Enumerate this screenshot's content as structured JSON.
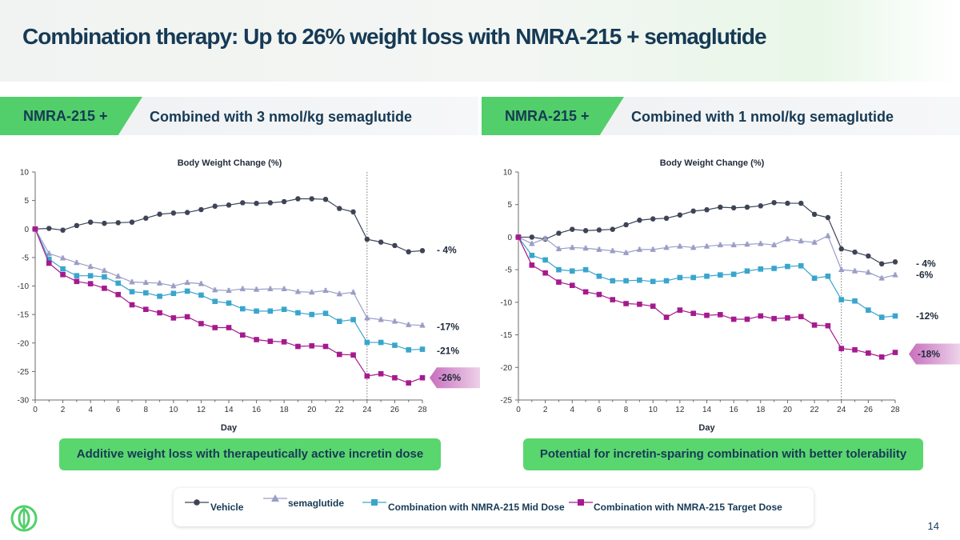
{
  "title": "Combination therapy: Up to 26% weight loss with NMRA-215 + semaglutide",
  "page_number": "14",
  "logo": {
    "icon": "leaf-logo-icon"
  },
  "colors": {
    "accent_green": "#52cf6a",
    "vehicle": "#3d4456",
    "semaglutide": "#9a9dc6",
    "mid_dose": "#3aa5cc",
    "target_dose": "#a51a8e"
  },
  "panels": [
    {
      "tag": "NMRA-215 +",
      "heading": "Combined with 3 nmol/kg semaglutide",
      "callout": "Additive weight loss with therapeutically active incretin dose"
    },
    {
      "tag": "NMRA-215 +",
      "heading": "Combined with 1 nmol/kg semaglutide",
      "callout": "Potential for incretin-sparing combination with better tolerability"
    }
  ],
  "legend": [
    {
      "label": "Vehicle",
      "marker": "circle",
      "color": "#3d4456"
    },
    {
      "label": "semaglutide",
      "marker": "triangle",
      "color": "#9a9dc6"
    },
    {
      "label": "Combination with NMRA-215 Mid Dose",
      "marker": "square",
      "color": "#3aa5cc"
    },
    {
      "label": "Combination with NMRA-215 Target Dose",
      "marker": "square",
      "color": "#a51a8e"
    }
  ],
  "chart_data": [
    {
      "type": "line",
      "title": "Body Weight Change (%)",
      "xlabel": "Day",
      "ylabel": "",
      "xlim": [
        0,
        28
      ],
      "ylim": [
        -30,
        10
      ],
      "xticks": [
        "0",
        "2",
        "4",
        "6",
        "8",
        "10",
        "12",
        "14",
        "16",
        "18",
        "20",
        "22",
        "24",
        "26",
        "28"
      ],
      "yticks": [
        "10",
        "5",
        "0",
        "-5",
        "-10",
        "-15",
        "-20",
        "-25",
        "-30"
      ],
      "dashed_vline_x": 24,
      "x": [
        0,
        1,
        2,
        3,
        4,
        5,
        6,
        7,
        8,
        9,
        10,
        11,
        12,
        13,
        14,
        15,
        16,
        17,
        18,
        19,
        20,
        21,
        22,
        23,
        24,
        25,
        26,
        27,
        28
      ],
      "series": [
        {
          "name": "Vehicle",
          "marker": "circle",
          "color": "#3d4456",
          "values": [
            0,
            0.1,
            -0.2,
            0.6,
            1.2,
            1.0,
            1.1,
            1.2,
            1.9,
            2.6,
            2.8,
            2.9,
            3.4,
            4.0,
            4.2,
            4.6,
            4.5,
            4.6,
            4.8,
            5.3,
            5.3,
            5.2,
            3.6,
            3.0,
            -1.8,
            -2.3,
            -2.9,
            -4.0,
            -3.8
          ],
          "end_label": "- 4%"
        },
        {
          "name": "semaglutide",
          "marker": "triangle",
          "color": "#9a9dc6",
          "values": [
            0,
            -4.3,
            -5.1,
            -5.9,
            -6.6,
            -7.3,
            -8.3,
            -9.3,
            -9.4,
            -9.5,
            -10.0,
            -9.4,
            -9.6,
            -10.7,
            -10.8,
            -10.5,
            -10.6,
            -10.5,
            -10.5,
            -11.0,
            -11.1,
            -10.8,
            -11.4,
            -11.1,
            -15.6,
            -15.9,
            -16.2,
            -16.8,
            -16.9
          ],
          "end_label": "-17%"
        },
        {
          "name": "Combination with NMRA-215 Mid Dose",
          "marker": "square",
          "color": "#3aa5cc",
          "values": [
            0,
            -5.3,
            -7.0,
            -8.2,
            -8.2,
            -8.4,
            -9.5,
            -11.0,
            -11.2,
            -11.8,
            -11.3,
            -10.9,
            -11.6,
            -12.7,
            -13.0,
            -14.0,
            -14.4,
            -14.4,
            -14.1,
            -14.7,
            -15.0,
            -14.8,
            -16.2,
            -15.9,
            -19.9,
            -19.9,
            -20.4,
            -21.2,
            -21.1
          ],
          "end_label": "-21%"
        },
        {
          "name": "Combination with NMRA-215 Target Dose",
          "marker": "square",
          "color": "#a51a8e",
          "values": [
            0,
            -6.0,
            -8.0,
            -9.2,
            -9.6,
            -10.4,
            -11.5,
            -13.3,
            -14.1,
            -14.7,
            -15.6,
            -15.4,
            -16.6,
            -17.3,
            -17.3,
            -18.6,
            -19.4,
            -19.7,
            -19.8,
            -20.6,
            -20.5,
            -20.6,
            -22.0,
            -22.1,
            -25.8,
            -25.4,
            -26.1,
            -27.0,
            -26.1
          ],
          "end_label": "-26%",
          "end_label_highlight": true
        }
      ]
    },
    {
      "type": "line",
      "title": "Body Weight Change (%)",
      "xlabel": "Day",
      "ylabel": "",
      "xlim": [
        0,
        28
      ],
      "ylim": [
        -25,
        10
      ],
      "xticks": [
        "0",
        "2",
        "4",
        "6",
        "8",
        "10",
        "12",
        "14",
        "16",
        "18",
        "20",
        "22",
        "24",
        "26",
        "28"
      ],
      "yticks": [
        "10",
        "5",
        "0",
        "-5",
        "-10",
        "-15",
        "-20",
        "-25"
      ],
      "dashed_vline_x": 24,
      "x": [
        0,
        1,
        2,
        3,
        4,
        5,
        6,
        7,
        8,
        9,
        10,
        11,
        12,
        13,
        14,
        15,
        16,
        17,
        18,
        19,
        20,
        21,
        22,
        23,
        24,
        25,
        26,
        27,
        28
      ],
      "series": [
        {
          "name": "Vehicle",
          "marker": "circle",
          "color": "#3d4456",
          "values": [
            0,
            0.0,
            -0.3,
            0.6,
            1.2,
            1.0,
            1.1,
            1.2,
            1.9,
            2.6,
            2.8,
            2.9,
            3.4,
            4.0,
            4.2,
            4.6,
            4.5,
            4.6,
            4.8,
            5.3,
            5.2,
            5.2,
            3.5,
            3.0,
            -1.8,
            -2.3,
            -2.9,
            -4.1,
            -3.8
          ],
          "end_label": "- 4%"
        },
        {
          "name": "semaglutide",
          "marker": "triangle",
          "color": "#9a9dc6",
          "values": [
            0,
            -1.0,
            -0.2,
            -1.8,
            -1.6,
            -1.7,
            -1.9,
            -2.1,
            -2.4,
            -1.9,
            -1.9,
            -1.6,
            -1.4,
            -1.6,
            -1.4,
            -1.2,
            -1.2,
            -1.1,
            -1.0,
            -1.2,
            -0.3,
            -0.6,
            -0.8,
            0.2,
            -5.0,
            -5.2,
            -5.4,
            -6.3,
            -5.8
          ],
          "end_label": "-6%"
        },
        {
          "name": "Combination with NMRA-215 Mid Dose",
          "marker": "square",
          "color": "#3aa5cc",
          "values": [
            0,
            -2.8,
            -3.5,
            -5.0,
            -5.2,
            -5.0,
            -6.0,
            -6.7,
            -6.7,
            -6.6,
            -6.8,
            -6.7,
            -6.2,
            -6.2,
            -6.0,
            -5.8,
            -5.7,
            -5.2,
            -4.9,
            -4.8,
            -4.5,
            -4.4,
            -6.3,
            -6.0,
            -9.6,
            -9.8,
            -11.2,
            -12.3,
            -12.1
          ],
          "end_label": "-12%"
        },
        {
          "name": "Combination with NMRA-215 Target Dose",
          "marker": "square",
          "color": "#a51a8e",
          "values": [
            0,
            -4.3,
            -5.5,
            -6.9,
            -7.4,
            -8.4,
            -8.8,
            -9.6,
            -10.2,
            -10.3,
            -10.6,
            -12.3,
            -11.2,
            -11.7,
            -12.0,
            -11.9,
            -12.6,
            -12.6,
            -12.1,
            -12.5,
            -12.4,
            -12.2,
            -13.5,
            -13.6,
            -17.1,
            -17.3,
            -17.8,
            -18.4,
            -17.7
          ],
          "end_label": "-18%",
          "end_label_highlight": true
        }
      ]
    }
  ]
}
